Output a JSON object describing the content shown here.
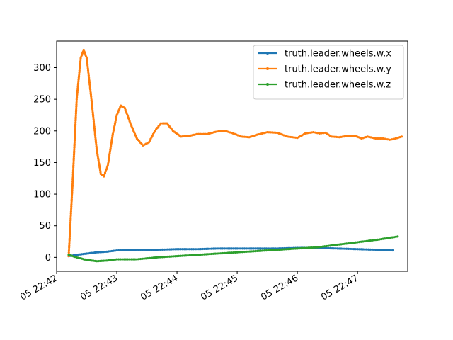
{
  "chart_data": {
    "type": "line",
    "title": "",
    "xlabel": "",
    "ylabel": "",
    "x_axis_type": "time",
    "x_range": [
      "05 22:42:00",
      "05 22:47:50"
    ],
    "x_ticks": [
      {
        "value": "05 22:42:00",
        "label": "05 22:42"
      },
      {
        "value": "05 22:43:00",
        "label": "05 22:43"
      },
      {
        "value": "05 22:44:00",
        "label": "05 22:44"
      },
      {
        "value": "05 22:45:00",
        "label": "05 22:45"
      },
      {
        "value": "05 22:46:00",
        "label": "05 22:46"
      },
      {
        "value": "05 22:47:00",
        "label": "05 22:47"
      }
    ],
    "ylim": [
      -22,
      342
    ],
    "y_ticks": [
      0,
      50,
      100,
      150,
      200,
      250,
      300
    ],
    "grid": false,
    "legend_position": "top-right",
    "series": [
      {
        "name": "truth.leader.wheels.w.x",
        "color": "#1f77b4",
        "points": [
          [
            "05 22:42:12",
            2
          ],
          [
            "05 22:42:20",
            4
          ],
          [
            "05 22:42:30",
            6
          ],
          [
            "05 22:42:40",
            8
          ],
          [
            "05 22:42:50",
            9
          ],
          [
            "05 22:43:00",
            11
          ],
          [
            "05 22:43:20",
            12
          ],
          [
            "05 22:43:40",
            12
          ],
          [
            "05 22:44:00",
            13
          ],
          [
            "05 22:44:20",
            13
          ],
          [
            "05 22:44:40",
            14
          ],
          [
            "05 22:45:00",
            14
          ],
          [
            "05 22:45:20",
            14
          ],
          [
            "05 22:45:40",
            14
          ],
          [
            "05 22:46:00",
            15
          ],
          [
            "05 22:46:20",
            15
          ],
          [
            "05 22:46:40",
            14
          ],
          [
            "05 22:47:00",
            13
          ],
          [
            "05 22:47:20",
            12
          ],
          [
            "05 22:47:35",
            11
          ]
        ]
      },
      {
        "name": "truth.leader.wheels.w.y",
        "color": "#ff7f0e",
        "points": [
          [
            "05 22:42:12",
            2
          ],
          [
            "05 22:42:16",
            120
          ],
          [
            "05 22:42:20",
            250
          ],
          [
            "05 22:42:24",
            315
          ],
          [
            "05 22:42:27",
            328
          ],
          [
            "05 22:42:30",
            315
          ],
          [
            "05 22:42:34",
            260
          ],
          [
            "05 22:42:40",
            170
          ],
          [
            "05 22:42:44",
            132
          ],
          [
            "05 22:42:47",
            128
          ],
          [
            "05 22:42:51",
            145
          ],
          [
            "05 22:42:56",
            195
          ],
          [
            "05 22:43:00",
            225
          ],
          [
            "05 22:43:04",
            240
          ],
          [
            "05 22:43:08",
            236
          ],
          [
            "05 22:43:14",
            210
          ],
          [
            "05 22:43:20",
            188
          ],
          [
            "05 22:43:26",
            177
          ],
          [
            "05 22:43:32",
            182
          ],
          [
            "05 22:43:38",
            200
          ],
          [
            "05 22:43:44",
            212
          ],
          [
            "05 22:43:50",
            212
          ],
          [
            "05 22:43:56",
            200
          ],
          [
            "05 22:44:04",
            191
          ],
          [
            "05 22:44:12",
            192
          ],
          [
            "05 22:44:20",
            195
          ],
          [
            "05 22:44:30",
            195
          ],
          [
            "05 22:44:40",
            199
          ],
          [
            "05 22:44:48",
            200
          ],
          [
            "05 22:44:56",
            196
          ],
          [
            "05 22:45:04",
            191
          ],
          [
            "05 22:45:12",
            190
          ],
          [
            "05 22:45:20",
            194
          ],
          [
            "05 22:45:30",
            198
          ],
          [
            "05 22:45:40",
            197
          ],
          [
            "05 22:45:50",
            191
          ],
          [
            "05 22:46:00",
            189
          ],
          [
            "05 22:46:08",
            196
          ],
          [
            "05 22:46:16",
            198
          ],
          [
            "05 22:46:22",
            196
          ],
          [
            "05 22:46:28",
            197
          ],
          [
            "05 22:46:34",
            191
          ],
          [
            "05 22:46:42",
            190
          ],
          [
            "05 22:46:50",
            192
          ],
          [
            "05 22:46:58",
            192
          ],
          [
            "05 22:47:04",
            188
          ],
          [
            "05 22:47:10",
            191
          ],
          [
            "05 22:47:18",
            188
          ],
          [
            "05 22:47:26",
            188
          ],
          [
            "05 22:47:32",
            186
          ],
          [
            "05 22:47:38",
            188
          ],
          [
            "05 22:47:44",
            191
          ]
        ]
      },
      {
        "name": "truth.leader.wheels.w.z",
        "color": "#2ca02c",
        "points": [
          [
            "05 22:42:12",
            4
          ],
          [
            "05 22:42:20",
            0
          ],
          [
            "05 22:42:30",
            -4
          ],
          [
            "05 22:42:40",
            -6
          ],
          [
            "05 22:42:50",
            -5
          ],
          [
            "05 22:43:00",
            -3
          ],
          [
            "05 22:43:20",
            -3
          ],
          [
            "05 22:43:40",
            0
          ],
          [
            "05 22:44:00",
            2
          ],
          [
            "05 22:44:20",
            4
          ],
          [
            "05 22:44:40",
            6
          ],
          [
            "05 22:45:00",
            8
          ],
          [
            "05 22:45:20",
            10
          ],
          [
            "05 22:45:40",
            12
          ],
          [
            "05 22:46:00",
            14
          ],
          [
            "05 22:46:20",
            16
          ],
          [
            "05 22:46:40",
            20
          ],
          [
            "05 22:47:00",
            24
          ],
          [
            "05 22:47:20",
            28
          ],
          [
            "05 22:47:40",
            33
          ]
        ]
      }
    ]
  }
}
